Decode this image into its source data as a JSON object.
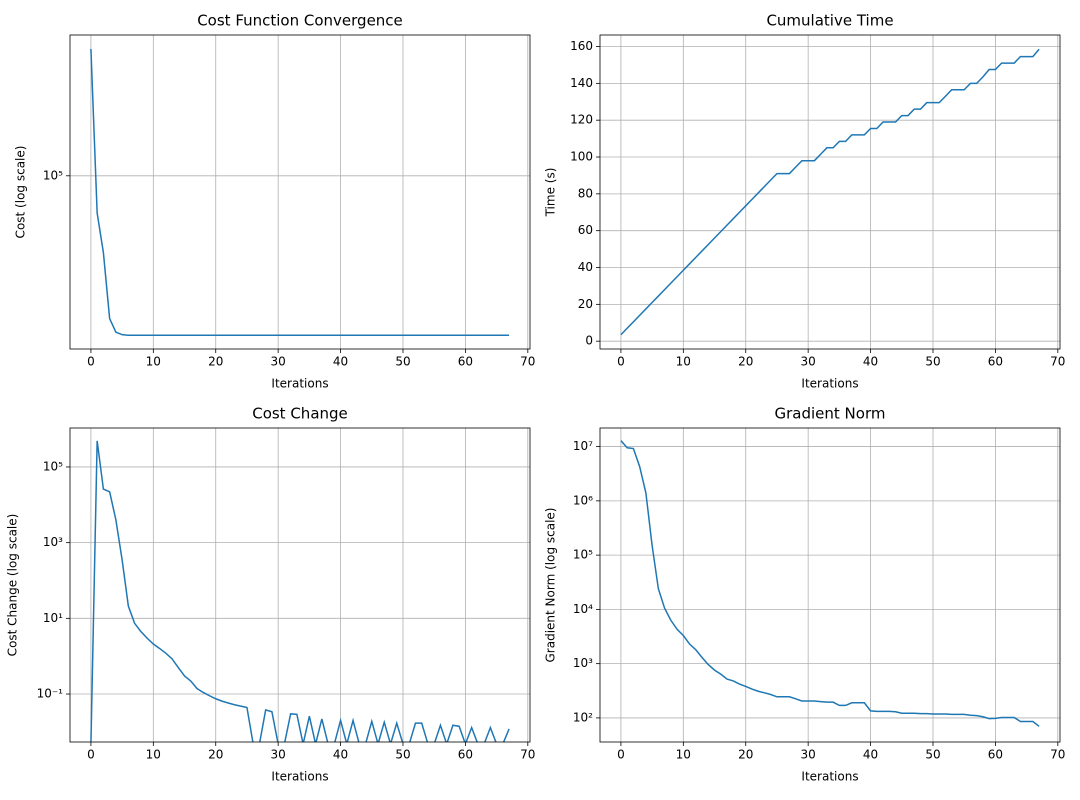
{
  "chart_data": [
    {
      "type": "line",
      "title": "Cost Function Convergence",
      "xlabel": "Iterations",
      "ylabel": "Cost (log scale)",
      "log_y": true,
      "grid": true,
      "color": "#1f77b4",
      "x": [
        0,
        1,
        2,
        3,
        4,
        5,
        6,
        7,
        8,
        9,
        10,
        11,
        12,
        13,
        14,
        15,
        16,
        17,
        18,
        19,
        20,
        21,
        22,
        23,
        24,
        25,
        26,
        27,
        28,
        29,
        30,
        31,
        32,
        33,
        34,
        35,
        36,
        37,
        38,
        39,
        40,
        41,
        42,
        43,
        44,
        45,
        46,
        47,
        48,
        49,
        50,
        51,
        52,
        53,
        54,
        55,
        56,
        57,
        58,
        59,
        60,
        61,
        62,
        63,
        64,
        65,
        66,
        67
      ],
      "values": [
        540000,
        61000,
        36000,
        15000,
        12500,
        12100,
        12000,
        12000,
        12000,
        12000,
        12000,
        12000,
        12000,
        12000,
        12000,
        12000,
        12000,
        12000,
        12000,
        12000,
        12000,
        12000,
        12000,
        12000,
        12000,
        12000,
        12000,
        12000,
        12000,
        12000,
        12000,
        12000,
        12000,
        12000,
        12000,
        12000,
        12000,
        12000,
        12000,
        12000,
        12000,
        12000,
        12000,
        12000,
        12000,
        12000,
        12000,
        12000,
        12000,
        12000,
        12000,
        12000,
        12000,
        12000,
        12000,
        12000,
        12000,
        12000,
        12000,
        12000,
        12000,
        12000,
        12000,
        12000,
        12000,
        12000,
        12000,
        12000
      ],
      "xlim": [
        -3.35,
        70.35
      ],
      "xticks": [
        0,
        10,
        20,
        30,
        40,
        50,
        60,
        70
      ],
      "ylim": [
        10000,
        650000
      ],
      "yticks": [
        {
          "value": 100000,
          "label": "10⁵"
        }
      ]
    },
    {
      "type": "line",
      "title": "Cumulative Time",
      "xlabel": "Iterations",
      "ylabel": "Time (s)",
      "log_y": false,
      "grid": true,
      "color": "#1f77b4",
      "x": [
        0,
        1,
        2,
        3,
        4,
        5,
        6,
        7,
        8,
        9,
        10,
        11,
        12,
        13,
        14,
        15,
        16,
        17,
        18,
        19,
        20,
        21,
        22,
        23,
        24,
        25,
        26,
        27,
        28,
        29,
        30,
        31,
        32,
        33,
        34,
        35,
        36,
        37,
        38,
        39,
        40,
        41,
        42,
        43,
        44,
        45,
        46,
        47,
        48,
        49,
        50,
        51,
        52,
        53,
        54,
        55,
        56,
        57,
        58,
        59,
        60,
        61,
        62,
        63,
        64,
        65,
        66,
        67
      ],
      "values": [
        3.5,
        7,
        10.5,
        14,
        17.5,
        21,
        24.5,
        28,
        31.5,
        35,
        38.5,
        42,
        45.5,
        49,
        52.5,
        56,
        59.5,
        63,
        66.5,
        70,
        73.5,
        77,
        80.5,
        84,
        87.5,
        91,
        91,
        91,
        94.5,
        98,
        98,
        98,
        101.5,
        105,
        105,
        108.5,
        108.5,
        112,
        112,
        112,
        115.5,
        115.5,
        119,
        119,
        119,
        122.5,
        122.5,
        126,
        126,
        129.5,
        129.5,
        129.5,
        133,
        136.5,
        136.5,
        136.5,
        140,
        140,
        143.5,
        147.5,
        147.5,
        151,
        151,
        151,
        154.5,
        154.5,
        154.5,
        158.5
      ],
      "xlim": [
        -3.35,
        70.35
      ],
      "xticks": [
        0,
        10,
        20,
        30,
        40,
        50,
        60,
        70
      ],
      "ylim": [
        -4.25,
        166.25
      ],
      "yticks": [
        0,
        20,
        40,
        60,
        80,
        100,
        120,
        140,
        160
      ]
    },
    {
      "type": "line",
      "title": "Cost Change",
      "xlabel": "Iterations",
      "ylabel": "Cost Change (log scale)",
      "log_y": true,
      "grid": true,
      "color": "#1f77b4",
      "x": [
        0,
        1,
        2,
        3,
        4,
        5,
        6,
        7,
        8,
        9,
        10,
        11,
        12,
        13,
        14,
        15,
        16,
        17,
        18,
        19,
        20,
        21,
        22,
        23,
        24,
        25,
        26,
        27,
        28,
        29,
        30,
        31,
        32,
        33,
        34,
        35,
        36,
        37,
        38,
        39,
        40,
        41,
        42,
        43,
        44,
        45,
        46,
        47,
        48,
        49,
        50,
        51,
        52,
        53,
        54,
        55,
        56,
        57,
        58,
        59,
        60,
        61,
        62,
        63,
        64,
        65,
        66,
        67
      ],
      "values": [
        0,
        490000,
        26000,
        22000,
        4000,
        350,
        21,
        7.4,
        4.5,
        3,
        2.1,
        1.6,
        1.2,
        0.85,
        0.5,
        0.3,
        0.22,
        0.14,
        0.11,
        0.09,
        0.075,
        0.065,
        0.058,
        0.052,
        0.048,
        0.044,
        0,
        0,
        0.038,
        0.034,
        0,
        0,
        0.03,
        0.029,
        0,
        0.026,
        0,
        0.022,
        0,
        0,
        0.02,
        0,
        0.02,
        0,
        0,
        0.019,
        0,
        0.018,
        0,
        0.017,
        0,
        0,
        0.017,
        0.017,
        0,
        0,
        0.015,
        0,
        0.015,
        0.014,
        0,
        0.013,
        0,
        0,
        0.013,
        0,
        0,
        0.012
      ],
      "xlim": [
        -3.35,
        70.35
      ],
      "xticks": [
        0,
        10,
        20,
        30,
        40,
        50,
        60,
        70
      ],
      "ylim": [
        0.0054,
        1070000
      ],
      "yticks": [
        {
          "value": 0.1,
          "label": "10⁻¹"
        },
        {
          "value": 10,
          "label": "10¹"
        },
        {
          "value": 1000,
          "label": "10³"
        },
        {
          "value": 100000,
          "label": "10⁵"
        }
      ]
    },
    {
      "type": "line",
      "title": "Gradient Norm",
      "xlabel": "Iterations",
      "ylabel": "Gradient Norm (log scale)",
      "log_y": true,
      "grid": true,
      "color": "#1f77b4",
      "x": [
        0,
        1,
        2,
        3,
        4,
        5,
        6,
        7,
        8,
        9,
        10,
        11,
        12,
        13,
        14,
        15,
        16,
        17,
        18,
        19,
        20,
        21,
        22,
        23,
        24,
        25,
        26,
        27,
        28,
        29,
        30,
        31,
        32,
        33,
        34,
        35,
        36,
        37,
        38,
        39,
        40,
        41,
        42,
        43,
        44,
        45,
        46,
        47,
        48,
        49,
        50,
        51,
        52,
        53,
        54,
        55,
        56,
        57,
        58,
        59,
        60,
        61,
        62,
        63,
        64,
        65,
        66,
        67
      ],
      "values": [
        12900000,
        9500000,
        9200000,
        4300000,
        1400000,
        150000,
        24000,
        10500,
        6300,
        4300,
        3300,
        2300,
        1800,
        1300,
        960,
        760,
        640,
        520,
        480,
        420,
        380,
        340,
        310,
        290,
        270,
        245,
        245,
        245,
        225,
        205,
        205,
        205,
        200,
        195,
        195,
        170,
        170,
        190,
        190,
        190,
        135,
        132,
        132,
        132,
        130,
        122,
        122,
        122,
        120,
        120,
        118,
        118,
        118,
        116,
        116,
        116,
        112,
        110,
        105,
        97,
        98,
        102,
        102,
        102,
        86,
        86,
        86,
        70
      ],
      "xlim": [
        -3.35,
        70.35
      ],
      "xticks": [
        0,
        10,
        20,
        30,
        40,
        50,
        60,
        70
      ],
      "ylim": [
        36,
        22000000
      ],
      "yticks": [
        {
          "value": 100,
          "label": "10²"
        },
        {
          "value": 1000,
          "label": "10³"
        },
        {
          "value": 10000,
          "label": "10⁴"
        },
        {
          "value": 100000,
          "label": "10⁵"
        },
        {
          "value": 1000000,
          "label": "10⁶"
        },
        {
          "value": 10000000,
          "label": "10⁷"
        }
      ]
    }
  ]
}
